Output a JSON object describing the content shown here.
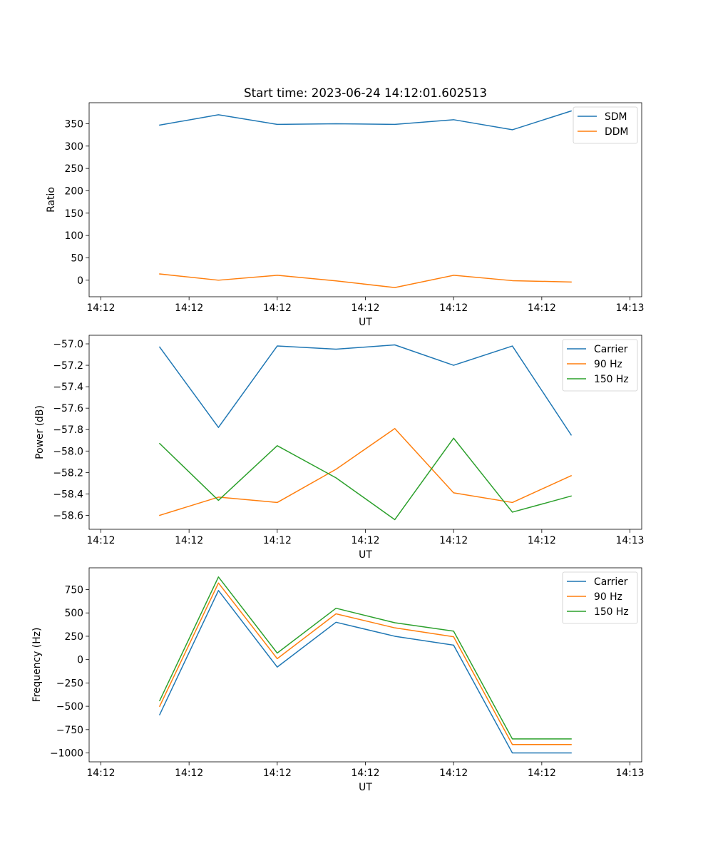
{
  "figure": {
    "title": "Start time: 2023-06-24 14:12:01.602513"
  },
  "chart_data": [
    {
      "type": "line",
      "title": "Start time: 2023-06-24 14:12:01.602513",
      "xlabel": "UT",
      "ylabel": "Ratio",
      "x": [
        1,
        2,
        3,
        4,
        5,
        6,
        7,
        8
      ],
      "xlim": [
        -0.2,
        9.2
      ],
      "x_ticks": [
        0,
        1.5,
        3,
        4.5,
        6,
        7.5,
        9
      ],
      "x_tick_labels": [
        "14:12",
        "14:12",
        "14:12",
        "14:12",
        "14:12",
        "14:12",
        "14:13"
      ],
      "ylim": [
        -37,
        397
      ],
      "y_ticks": [
        0,
        50,
        100,
        150,
        200,
        250,
        300,
        350
      ],
      "y_tick_labels": [
        "0",
        "50",
        "100",
        "150",
        "200",
        "250",
        "300",
        "350"
      ],
      "legend_position": "upper right",
      "grid": false,
      "series": [
        {
          "name": "SDM",
          "color": "#1f77b4",
          "values": [
            347,
            370,
            348.5,
            350,
            348.5,
            359,
            336.5,
            378.5
          ]
        },
        {
          "name": "DDM",
          "color": "#ff7f0e",
          "values": [
            14,
            0,
            11,
            -1.5,
            -16.5,
            11,
            -1,
            -4
          ]
        }
      ]
    },
    {
      "type": "line",
      "title": "",
      "xlabel": "UT",
      "ylabel": "Power (dB)",
      "x": [
        1,
        2,
        3,
        4,
        5,
        6,
        7,
        8
      ],
      "xlim": [
        -0.2,
        9.2
      ],
      "x_ticks": [
        0,
        1.5,
        3,
        4.5,
        6,
        7.5,
        9
      ],
      "x_tick_labels": [
        "14:12",
        "14:12",
        "14:12",
        "14:12",
        "14:12",
        "14:12",
        "14:13"
      ],
      "ylim": [
        -58.73,
        -56.92
      ],
      "y_ticks": [
        -58.6,
        -58.4,
        -58.2,
        -58.0,
        -57.8,
        -57.6,
        -57.4,
        -57.2,
        -57.0
      ],
      "y_tick_labels": [
        "−58.6",
        "−58.4",
        "−58.2",
        "−58.0",
        "−57.8",
        "−57.6",
        "−57.4",
        "−57.2",
        "−57.0"
      ],
      "legend_position": "upper right",
      "grid": false,
      "series": [
        {
          "name": "Carrier",
          "color": "#1f77b4",
          "values": [
            -57.03,
            -57.78,
            -57.02,
            -57.05,
            -57.01,
            -57.2,
            -57.02,
            -57.85
          ]
        },
        {
          "name": "90 Hz",
          "color": "#ff7f0e",
          "values": [
            -58.6,
            -58.43,
            -58.48,
            -58.17,
            -57.79,
            -58.39,
            -58.48,
            -58.23
          ]
        },
        {
          "name": "150 Hz",
          "color": "#2ca02c",
          "values": [
            -57.93,
            -58.46,
            -57.95,
            -58.25,
            -58.64,
            -57.88,
            -58.57,
            -58.42
          ]
        }
      ]
    },
    {
      "type": "line",
      "title": "",
      "xlabel": "UT",
      "ylabel": "Frequency (Hz)",
      "x": [
        1,
        2,
        3,
        4,
        5,
        6,
        7,
        8
      ],
      "xlim": [
        -0.2,
        9.2
      ],
      "x_ticks": [
        0,
        1.5,
        3,
        4.5,
        6,
        7.5,
        9
      ],
      "x_tick_labels": [
        "14:12",
        "14:12",
        "14:12",
        "14:12",
        "14:12",
        "14:12",
        "14:13"
      ],
      "ylim": [
        -1095,
        983
      ],
      "y_ticks": [
        -1000,
        -750,
        -500,
        -250,
        0,
        250,
        500,
        750
      ],
      "y_tick_labels": [
        "−1000",
        "−750",
        "−500",
        "−250",
        "0",
        "250",
        "500",
        "750"
      ],
      "legend_position": "upper right",
      "grid": false,
      "series": [
        {
          "name": "Carrier",
          "color": "#1f77b4",
          "values": [
            -590,
            740,
            -80,
            400,
            250,
            155,
            -1000,
            -1000
          ]
        },
        {
          "name": "90 Hz",
          "color": "#ff7f0e",
          "values": [
            -500,
            820,
            10,
            490,
            340,
            245,
            -910,
            -910
          ]
        },
        {
          "name": "150 Hz",
          "color": "#2ca02c",
          "values": [
            -440,
            885,
            70,
            550,
            395,
            305,
            -850,
            -850
          ]
        }
      ]
    }
  ]
}
